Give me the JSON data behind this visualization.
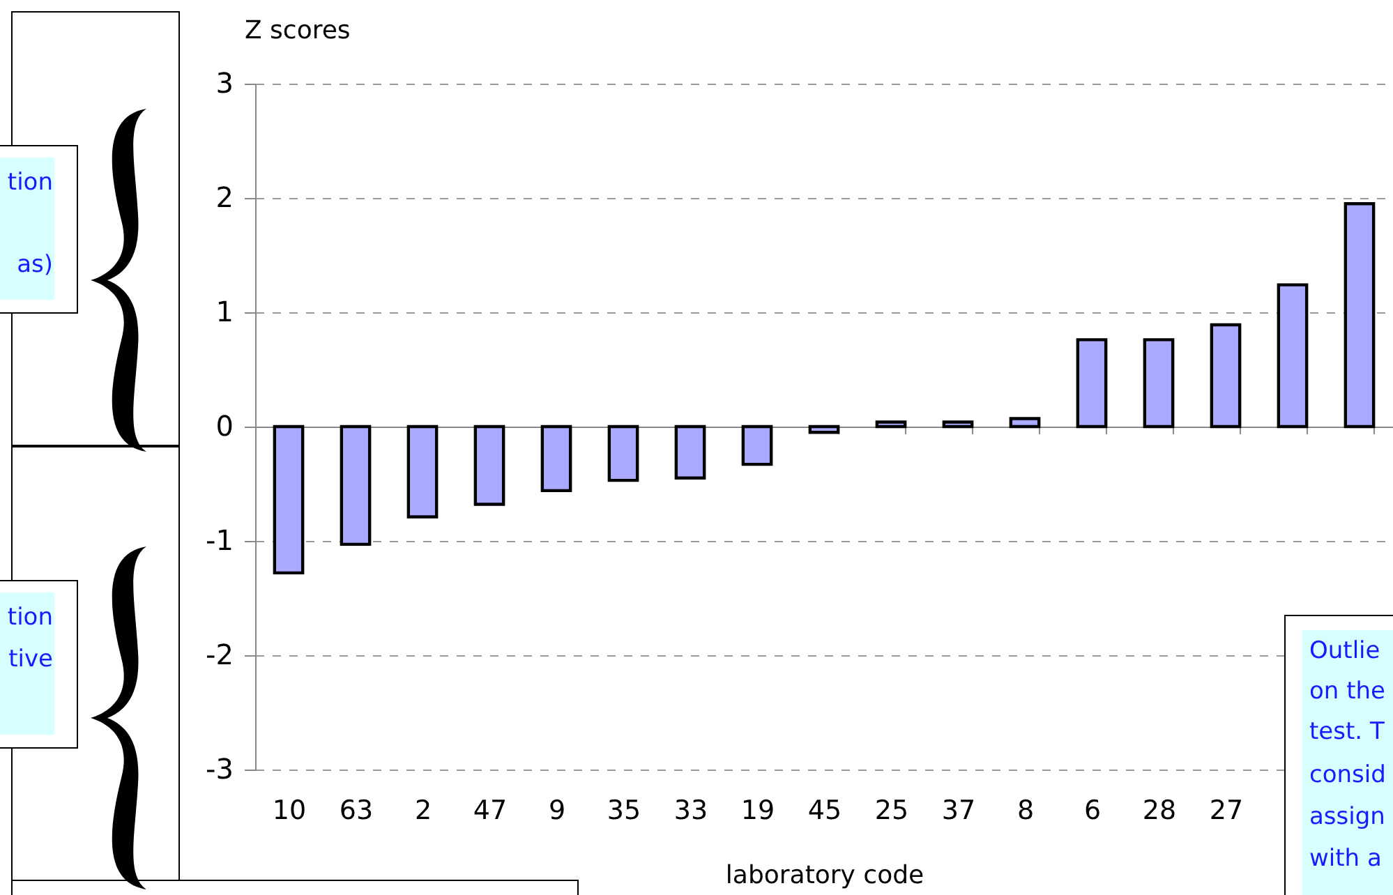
{
  "chart_data": {
    "type": "bar",
    "ylabel": "Z scores",
    "xlabel": "laboratory code",
    "categories": [
      "10",
      "63",
      "2",
      "47",
      "9",
      "35",
      "33",
      "19",
      "45",
      "25",
      "37",
      "8",
      "6",
      "28",
      "27",
      null,
      null
    ],
    "values": [
      -1.28,
      -1.03,
      -0.79,
      -0.68,
      -0.56,
      -0.47,
      -0.45,
      -0.33,
      -0.05,
      0.04,
      0.04,
      0.07,
      0.76,
      0.76,
      0.89,
      1.24,
      1.95
    ],
    "color": "#aaaaff",
    "ylim": [
      -3,
      3
    ],
    "yticks": [
      -3,
      -2,
      -1,
      0,
      1,
      2,
      3
    ],
    "grid": "y",
    "annotations": [
      "tion",
      "as)",
      "tion",
      "tive",
      "Outlie",
      "on the",
      "test. T",
      "consid",
      "assign",
      "with a"
    ]
  }
}
